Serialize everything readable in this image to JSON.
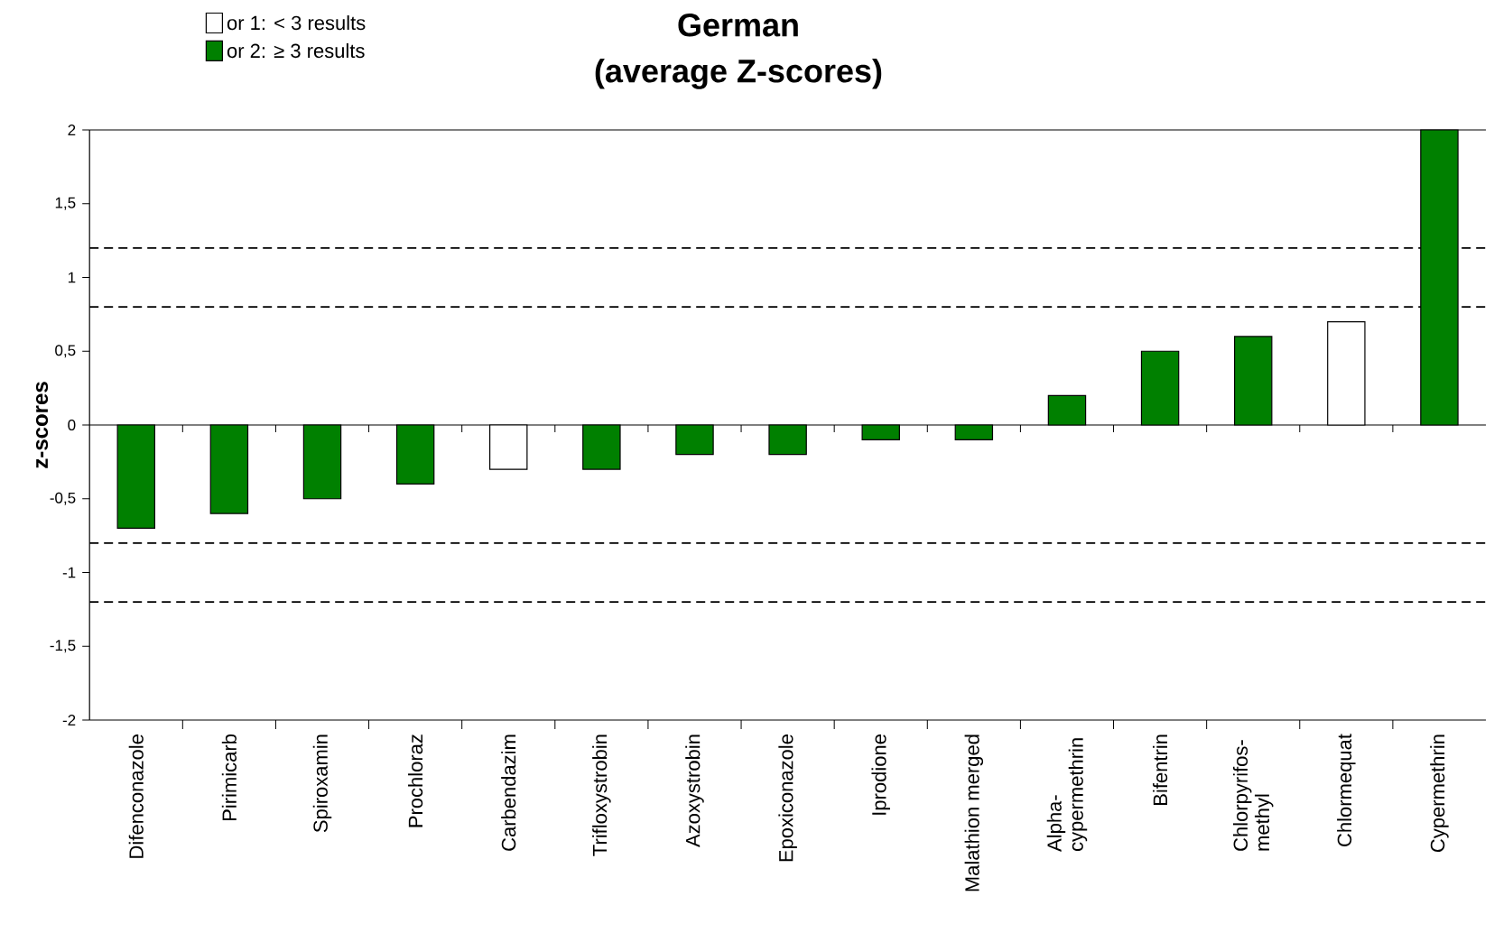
{
  "chart_data": {
    "type": "bar",
    "title": "German",
    "subtitle": "(average Z-scores)",
    "ylabel": "z-scores",
    "categories": [
      "Difenconazole",
      "Pirimicarb",
      "Spiroxamin",
      "Prochloraz",
      "Carbendazim",
      "Trifloxystrobin",
      "Azoxystrobin",
      "Epoxiconazole",
      "Iprodione",
      "Malathion  merged",
      "Alpha-cypermethrin",
      "Bifentrin",
      "Chlorpyrifos-methyl",
      "Chlormequat",
      "Cypermethrin"
    ],
    "series": [
      {
        "name": "or 1: < 3 results",
        "color": "#ffffff",
        "values": [
          null,
          null,
          null,
          null,
          -0.3,
          null,
          null,
          null,
          null,
          null,
          null,
          null,
          null,
          0.7,
          null
        ]
      },
      {
        "name": "or 2: ≥ 3 results",
        "color": "#008000",
        "values": [
          -0.7,
          -0.6,
          -0.5,
          -0.4,
          null,
          -0.3,
          -0.2,
          -0.2,
          -0.1,
          -0.1,
          0.2,
          0.5,
          0.6,
          null,
          2
        ]
      }
    ],
    "ylim": [
      -2,
      2
    ],
    "yticks": [
      -2,
      {
        "value": -1.5,
        "label": "-1,5"
      },
      -1,
      {
        "value": -0.5,
        "label": "-0,5"
      },
      0,
      {
        "value": 0.5,
        "label": "0,5"
      },
      1,
      {
        "value": 1.5,
        "label": "1,5"
      },
      2
    ],
    "ref_lines": [
      {
        "axis": "y",
        "value": 1.2,
        "line_style": "dashed"
      },
      {
        "axis": "y",
        "value": 0.8,
        "line_style": "dashed"
      },
      {
        "axis": "y",
        "value": -0.8,
        "line_style": "dashed"
      },
      {
        "axis": "y",
        "value": -1.2,
        "line_style": "dashed"
      }
    ],
    "legend": "top left"
  }
}
